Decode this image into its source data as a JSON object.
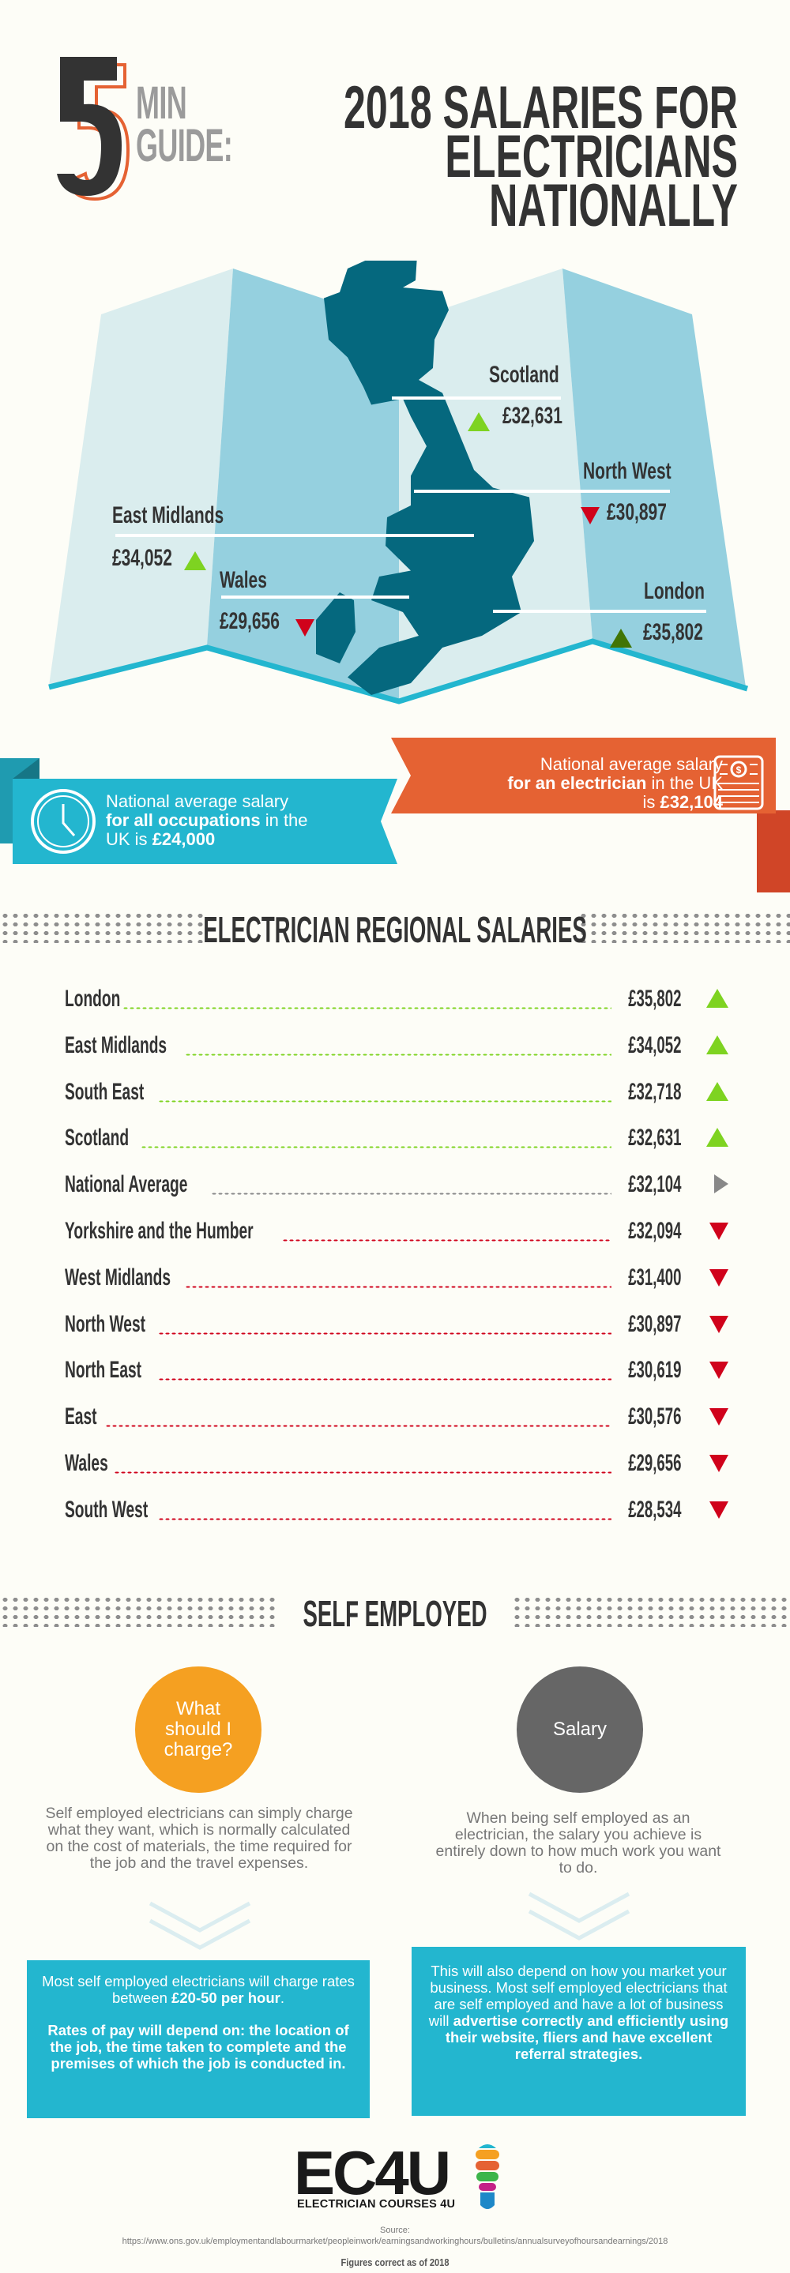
{
  "header": {
    "five": "5",
    "min": "MIN",
    "guide": "GUIDE:",
    "title_lines": [
      "2018 SALARIES FOR",
      "ELECTRICIANS",
      "NATIONALLY"
    ]
  },
  "map": {
    "labels": [
      {
        "region": "Scotland",
        "value": "£32,631",
        "trend": "up"
      },
      {
        "region": "North West",
        "value": "£30,897",
        "trend": "down"
      },
      {
        "region": "East Midlands",
        "value": "£34,052",
        "trend": "up"
      },
      {
        "region": "Wales",
        "value": "£29,656",
        "trend": "down"
      },
      {
        "region": "London",
        "value": "£35,802",
        "trend": "up"
      }
    ]
  },
  "banners": {
    "all_occupations": {
      "line1": "National average salary",
      "bold": "for all occupations",
      "line2_rest": " in the",
      "line3_prefix": "UK is ",
      "amount": "£24,000",
      "icon": "clock-icon",
      "color": "#23b6cf"
    },
    "electrician": {
      "line1": "National average salary",
      "bold": "for an electrician",
      "line2_rest": " in the UK",
      "line3_prefix": "is ",
      "amount": "£32,104",
      "icon": "cash-icon",
      "color": "#e56233"
    }
  },
  "regional": {
    "title": "ELECTRICIAN REGIONAL SALARIES",
    "rows": [
      {
        "region": "London",
        "value": "£35,802",
        "trend": "up"
      },
      {
        "region": "East Midlands",
        "value": "£34,052",
        "trend": "up"
      },
      {
        "region": "South East",
        "value": "£32,718",
        "trend": "up"
      },
      {
        "region": "Scotland",
        "value": "£32,631",
        "trend": "up"
      },
      {
        "region": "National Average",
        "value": "£32,104",
        "trend": "neutral"
      },
      {
        "region": "Yorkshire and the Humber",
        "value": "£32,094",
        "trend": "down"
      },
      {
        "region": "West Midlands",
        "value": "£31,400",
        "trend": "down"
      },
      {
        "region": "North West",
        "value": "£30,897",
        "trend": "down"
      },
      {
        "region": "North East",
        "value": "£30,619",
        "trend": "down"
      },
      {
        "region": "East",
        "value": "£30,576",
        "trend": "down"
      },
      {
        "region": "Wales",
        "value": "£29,656",
        "trend": "down"
      },
      {
        "region": "South West",
        "value": "£28,534",
        "trend": "down"
      }
    ],
    "colors": {
      "up": "#7ed321",
      "down": "#d0021b",
      "neutral": "#888888"
    }
  },
  "self_employed": {
    "title": "SELF EMPLOYED",
    "left": {
      "circle": "What should I charge?",
      "circle_color": "#f5a021",
      "desc": "Self employed electricians can simply charge what they want, which is normally calculated on the cost of materials, the time required for the job and the travel expenses.",
      "box_p1_pre": "Most self employed electricians will charge rates between ",
      "box_p1_bold": "£20-50 per hour",
      "box_p1_post": ".",
      "box_p2_bold": "Rates of pay will depend on: the location of the job, the time taken to complete and the premises of which the job is conducted in."
    },
    "right": {
      "circle": "Salary",
      "circle_color": "#666666",
      "desc": "When being self employed as an electrician, the salary you achieve is entirely down to how much work you want to do.",
      "box_pre": "This will also depend on how you market your business. Most self employed electricians that are self employed and have a lot of business will ",
      "box_bold": "advertise correctly and efficiently using their website, fliers and have excellent referral strategies."
    }
  },
  "footer": {
    "logo": "EC4U",
    "logo_sub": "ELECTRICIAN COURSES 4U",
    "source_label": "Source:",
    "source_url": "https://www.ons.gov.uk/employmentandlabourmarket/peopleinwork/earningsandworkinghours/bulletins/annualsurveyofhoursandearnings/2018",
    "figures_note": "Figures correct as of 2018"
  }
}
